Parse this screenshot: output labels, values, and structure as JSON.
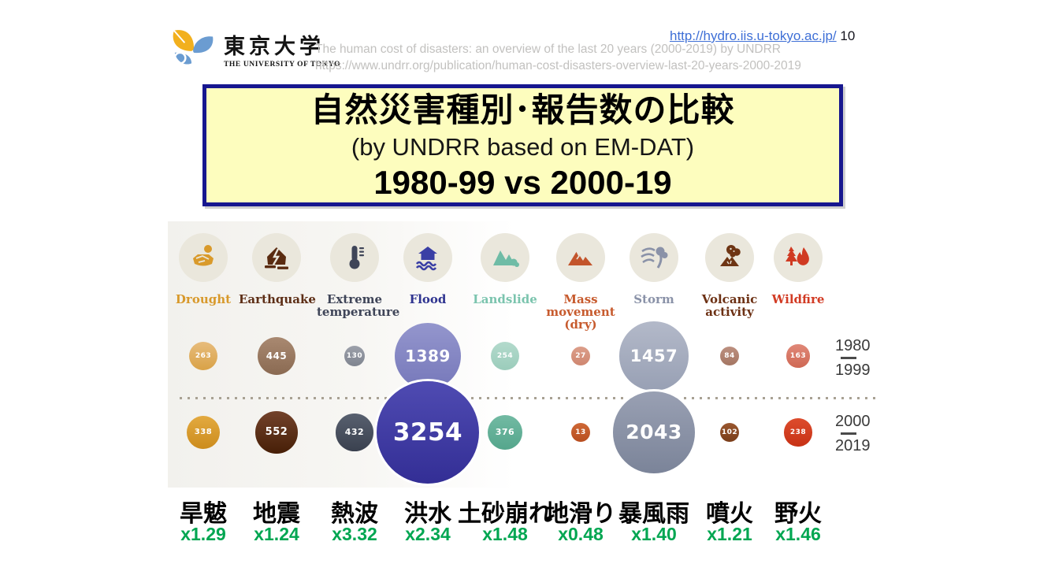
{
  "header": {
    "logo_jp": "東京大学",
    "logo_en": "THE UNIVERSITY OF TOKYO",
    "link_url": "http://hydro.iis.u-tokyo.ac.jp/",
    "page_number": "10",
    "link_color": "#3E6FD6",
    "reference_color": "#C2C1BF",
    "reference_line1": "The human cost of disasters: an overview of the last 20 years (2000-2019)  by UNDRR",
    "reference_line2": "https://www.undrr.org/publication/human-cost-disasters-overview-last-20-years-2000-2019"
  },
  "title_box": {
    "title_jp": "自然災害種別･報告数の比較",
    "subtitle": "(by UNDRR based on EM-DAT)",
    "comparison": "1980-99 vs 2000-19",
    "bg_color": "#FDFDBE",
    "border_color": "#17178F"
  },
  "chart_data": {
    "type": "bubble",
    "title": "Comparison of reported disasters by type, 1980-99 vs 2000-19 (by UNDRR based on EM-DAT)",
    "legend": {
      "row1": {
        "start": "1980",
        "end": "1999"
      },
      "row2": {
        "start": "2000",
        "end": "2019"
      }
    },
    "categories": [
      "Drought",
      "Earthquake",
      "Extreme temperature",
      "Flood",
      "Landslide",
      "Mass movement (dry)",
      "Storm",
      "Volcanic activity",
      "Wildfire"
    ],
    "categories_jp": [
      "旱魃",
      "地震",
      "熱波",
      "洪水",
      "土砂崩れ",
      "地滑り",
      "暴風雨",
      "噴火",
      "野火"
    ],
    "multipliers": [
      "x1.29",
      "x1.24",
      "x3.32",
      "x2.34",
      "x1.48",
      "x0.48",
      "x1.40",
      "x1.21",
      "x1.46"
    ],
    "series": [
      {
        "name": "1980-1999",
        "values": [
          263,
          445,
          130,
          1389,
          254,
          27,
          1457,
          84,
          163
        ]
      },
      {
        "name": "2000-2019",
        "values": [
          338,
          552,
          432,
          3254,
          376,
          13,
          2043,
          102,
          238
        ]
      }
    ],
    "multiplier_color": "#00A651",
    "icon_circle_bg": "#EAE7DC",
    "styles": [
      {
        "icon": "drought-icon",
        "icon_color": "#D99A2B",
        "label_color": "#D8992B",
        "bubble1": [
          "#E7BC7C",
          "#D9A247"
        ],
        "bubble2": [
          "#E3AA40",
          "#CC8C1D"
        ]
      },
      {
        "icon": "earthquake-icon",
        "icon_color": "#5A2B10",
        "label_color": "#5D2E16",
        "bubble1": [
          "#A98971",
          "#8A6A52"
        ],
        "bubble2": [
          "#72422B",
          "#471F07"
        ]
      },
      {
        "icon": "extreme-temperature-icon",
        "icon_color": "#3F4558",
        "label_color": "#3F4558",
        "bubble1": [
          "#9CA0AA",
          "#7F848F"
        ],
        "bubble2": [
          "#58606F",
          "#3A414F"
        ]
      },
      {
        "icon": "flood-icon",
        "icon_color": "#3A3FA5",
        "label_color": "#2F3490",
        "bubble1": [
          "#9496CD",
          "#7678BA"
        ],
        "bubble2": [
          "#4F4BB2",
          "#332E95"
        ]
      },
      {
        "icon": "landslide-icon",
        "icon_color": "#6FBCA6",
        "label_color": "#7BC4AE",
        "bubble1": [
          "#B3DACC",
          "#9BCCBB"
        ],
        "bubble2": [
          "#72BAA3",
          "#55A68C"
        ]
      },
      {
        "icon": "mass-movement-icon",
        "icon_color": "#C3552C",
        "label_color": "#C75B2E",
        "bubble1": [
          "#DC9E8A",
          "#CF8770"
        ],
        "bubble2": [
          "#CE6836",
          "#B84E20"
        ]
      },
      {
        "icon": "storm-icon",
        "icon_color": "#8A92A8",
        "label_color": "#8A92A8",
        "bubble1": [
          "#B3B9C9",
          "#98A0B4"
        ],
        "bubble2": [
          "#99A0B3",
          "#7B8499"
        ]
      },
      {
        "icon": "volcanic-activity-icon",
        "icon_color": "#6E3514",
        "label_color": "#6C3013",
        "bubble1": [
          "#BD9080",
          "#A47663"
        ],
        "bubble2": [
          "#99572F",
          "#7A3D1A"
        ]
      },
      {
        "icon": "wildfire-icon",
        "icon_color": "#D03A22",
        "label_color": "#D23B24",
        "bubble1": [
          "#E08878",
          "#CF6854"
        ],
        "bubble2": [
          "#DD4C2D",
          "#C73115"
        ]
      }
    ]
  }
}
